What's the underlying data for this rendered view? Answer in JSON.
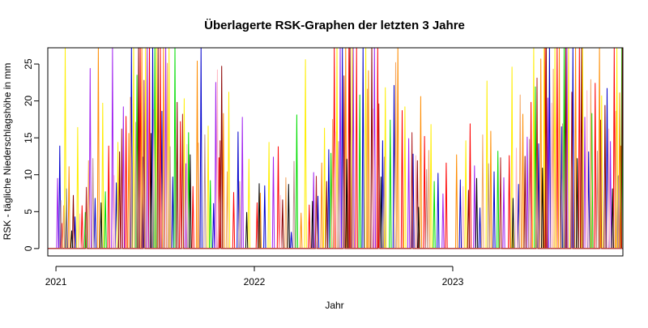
{
  "chart_data": {
    "type": "line",
    "title": "Überlagerte RSK-Graphen der letzten 3 Jahre",
    "xlabel": "Jahr",
    "ylabel": "RSK - tägliche Niederschlagshöhe in mm",
    "xlim": [
      "2020-12-17",
      "2023-11-10"
    ],
    "ylim": [
      -1,
      27.2
    ],
    "x_ticks": [
      {
        "date": "2021-01-01",
        "label": "2021"
      },
      {
        "date": "2022-01-01",
        "label": "2022"
      },
      {
        "date": "2023-01-01",
        "label": "2023"
      }
    ],
    "y_ticks": [
      0,
      5,
      10,
      15,
      20,
      25
    ],
    "grid": false,
    "legend": "none",
    "series_colors": [
      "#0000cc",
      "#ff0000",
      "#ffee00",
      "#00dd00",
      "#a020f0",
      "#ff8c00",
      "#8b0000",
      "#000000",
      "#f4a460",
      "#ffb6c1",
      "#bc8f8f",
      "#b22222"
    ],
    "series": [
      {
        "values": [
          [
            "2021-01-08",
            13.9
          ],
          [
            "2021-01-20",
            8.1
          ],
          [
            "2021-02-05",
            4.3
          ],
          [
            "2021-03-14",
            6.8
          ],
          [
            "2021-04-22",
            8.9
          ],
          [
            "2021-05-20",
            27.2
          ],
          [
            "2021-06-10",
            12.4
          ],
          [
            "2021-06-28",
            27.2
          ],
          [
            "2021-07-15",
            18.6
          ],
          [
            "2021-08-04",
            9.7
          ],
          [
            "2021-09-25",
            27.2
          ],
          [
            "2021-10-18",
            6.1
          ],
          [
            "2021-12-02",
            15.8
          ],
          [
            "2022-01-20",
            8.5
          ],
          [
            "2022-03-10",
            2.2
          ],
          [
            "2022-04-28",
            7.1
          ],
          [
            "2022-05-18",
            13.4
          ],
          [
            "2022-06-12",
            27.2
          ],
          [
            "2022-07-20",
            27.2
          ],
          [
            "2022-08-25",
            14.6
          ],
          [
            "2022-09-15",
            22.1
          ],
          [
            "2022-10-20",
            12.8
          ],
          [
            "2022-12-05",
            10.2
          ],
          [
            "2023-01-15",
            9.3
          ],
          [
            "2023-02-20",
            5.5
          ],
          [
            "2023-03-18",
            10.4
          ],
          [
            "2023-05-02",
            8.7
          ],
          [
            "2023-06-08",
            14.2
          ],
          [
            "2023-06-28",
            27.2
          ],
          [
            "2023-07-20",
            16.5
          ],
          [
            "2023-08-10",
            27.2
          ],
          [
            "2023-09-08",
            13.1
          ],
          [
            "2023-10-12",
            21.7
          ],
          [
            "2023-11-01",
            9.8
          ]
        ]
      },
      {
        "values": [
          [
            "2021-01-12",
            3.4
          ],
          [
            "2021-02-18",
            5.8
          ],
          [
            "2021-04-08",
            13.9
          ],
          [
            "2021-05-10",
            17.9
          ],
          [
            "2021-06-05",
            27.2
          ],
          [
            "2021-06-22",
            27.2
          ],
          [
            "2021-07-12",
            27.2
          ],
          [
            "2021-08-18",
            17.2
          ],
          [
            "2021-09-10",
            8.4
          ],
          [
            "2021-10-28",
            12.3
          ],
          [
            "2021-11-24",
            7.6
          ],
          [
            "2022-01-06",
            6.2
          ],
          [
            "2022-02-14",
            13.8
          ],
          [
            "2022-04-12",
            5.9
          ],
          [
            "2022-05-28",
            27.2
          ],
          [
            "2022-06-24",
            27.2
          ],
          [
            "2022-07-08",
            27.2
          ],
          [
            "2022-08-16",
            27.2
          ],
          [
            "2022-09-30",
            18.7
          ],
          [
            "2022-11-10",
            15.2
          ],
          [
            "2022-12-20",
            11.6
          ],
          [
            "2023-02-02",
            16.9
          ],
          [
            "2023-04-15",
            12.6
          ],
          [
            "2023-05-25",
            19.8
          ],
          [
            "2023-06-20",
            27.2
          ],
          [
            "2023-07-12",
            27.2
          ],
          [
            "2023-08-22",
            27.2
          ],
          [
            "2023-09-20",
            22.4
          ],
          [
            "2023-10-25",
            27.2
          ],
          [
            "2023-11-06",
            13.9
          ]
        ]
      },
      {
        "values": [
          [
            "2021-01-18",
            27.2
          ],
          [
            "2021-02-10",
            16.4
          ],
          [
            "2021-03-28",
            19.7
          ],
          [
            "2021-04-25",
            14.4
          ],
          [
            "2021-05-24",
            27.2
          ],
          [
            "2021-06-15",
            27.2
          ],
          [
            "2021-07-05",
            27.2
          ],
          [
            "2021-07-28",
            27.2
          ],
          [
            "2021-08-25",
            20.3
          ],
          [
            "2021-10-08",
            16.6
          ],
          [
            "2021-11-15",
            21.2
          ],
          [
            "2021-12-22",
            12.1
          ],
          [
            "2022-01-28",
            14.4
          ],
          [
            "2022-04-05",
            25.6
          ],
          [
            "2022-05-10",
            16.3
          ],
          [
            "2022-06-02",
            27.2
          ],
          [
            "2022-06-30",
            27.2
          ],
          [
            "2022-07-25",
            27.2
          ],
          [
            "2022-08-30",
            21.8
          ],
          [
            "2022-10-05",
            19.2
          ],
          [
            "2022-11-22",
            16.8
          ],
          [
            "2023-01-25",
            14.6
          ],
          [
            "2023-03-05",
            22.7
          ],
          [
            "2023-04-20",
            24.6
          ],
          [
            "2023-05-30",
            27.2
          ],
          [
            "2023-06-18",
            27.2
          ],
          [
            "2023-07-08",
            27.2
          ],
          [
            "2023-08-02",
            27.2
          ],
          [
            "2023-08-28",
            27.2
          ],
          [
            "2023-10-02",
            20.7
          ],
          [
            "2023-10-30",
            27.2
          ]
        ]
      },
      {
        "values": [
          [
            "2021-02-24",
            4.9
          ],
          [
            "2021-04-02",
            7.7
          ],
          [
            "2021-05-30",
            23.5
          ],
          [
            "2021-07-02",
            27.2
          ],
          [
            "2021-08-08",
            27.2
          ],
          [
            "2021-09-02",
            15.7
          ],
          [
            "2021-10-12",
            9.2
          ],
          [
            "2022-03-20",
            18.1
          ],
          [
            "2022-05-22",
            12.9
          ],
          [
            "2022-07-14",
            20.8
          ],
          [
            "2022-09-08",
            17.4
          ],
          [
            "2022-11-28",
            9.1
          ],
          [
            "2023-03-25",
            13.2
          ],
          [
            "2023-06-02",
            21.9
          ],
          [
            "2023-07-25",
            27.2
          ],
          [
            "2023-09-14",
            18.3
          ],
          [
            "2023-11-08",
            27.2
          ]
        ]
      },
      {
        "values": [
          [
            "2021-01-04",
            9.5
          ],
          [
            "2021-03-05",
            24.4
          ],
          [
            "2021-04-15",
            27.2
          ],
          [
            "2021-05-05",
            19.2
          ],
          [
            "2021-06-18",
            27.2
          ],
          [
            "2021-07-22",
            27.2
          ],
          [
            "2021-08-28",
            11.5
          ],
          [
            "2021-10-22",
            22.5
          ],
          [
            "2021-12-10",
            17.8
          ],
          [
            "2022-02-05",
            12.4
          ],
          [
            "2022-04-20",
            10.3
          ],
          [
            "2022-06-08",
            27.2
          ],
          [
            "2022-07-02",
            27.2
          ],
          [
            "2022-08-10",
            27.2
          ],
          [
            "2022-10-12",
            14.9
          ],
          [
            "2022-12-14",
            7.4
          ],
          [
            "2023-02-10",
            11.2
          ],
          [
            "2023-04-05",
            9.6
          ],
          [
            "2023-05-18",
            15.1
          ],
          [
            "2023-06-25",
            20.4
          ],
          [
            "2023-07-30",
            27.2
          ],
          [
            "2023-09-01",
            17.8
          ],
          [
            "2023-10-18",
            14.5
          ]
        ]
      },
      {
        "values": [
          [
            "2021-01-25",
            11.1
          ],
          [
            "2021-03-20",
            27.2
          ],
          [
            "2021-05-15",
            15.6
          ],
          [
            "2021-06-08",
            27.2
          ],
          [
            "2021-07-18",
            27.2
          ],
          [
            "2021-09-18",
            25.4
          ],
          [
            "2021-11-05",
            18.3
          ],
          [
            "2022-01-12",
            7.5
          ],
          [
            "2022-03-28",
            4.8
          ],
          [
            "2022-05-05",
            11.6
          ],
          [
            "2022-06-18",
            27.2
          ],
          [
            "2022-07-30",
            24.1
          ],
          [
            "2022-09-22",
            27.2
          ],
          [
            "2022-11-03",
            20.6
          ],
          [
            "2023-01-08",
            12.7
          ],
          [
            "2023-03-12",
            15.9
          ],
          [
            "2023-05-10",
            18.2
          ],
          [
            "2023-06-12",
            25.7
          ],
          [
            "2023-07-16",
            27.2
          ],
          [
            "2023-08-15",
            27.2
          ],
          [
            "2023-09-28",
            27.2
          ],
          [
            "2023-11-04",
            21.1
          ]
        ]
      },
      {
        "values": [
          [
            "2021-02-02",
            7.2
          ],
          [
            "2021-04-28",
            13.1
          ],
          [
            "2021-06-02",
            27.2
          ],
          [
            "2021-07-08",
            27.2
          ],
          [
            "2021-08-12",
            19.8
          ],
          [
            "2021-11-02",
            24.7
          ],
          [
            "2022-02-22",
            6.6
          ],
          [
            "2022-05-14",
            9.1
          ],
          [
            "2022-06-26",
            27.2
          ],
          [
            "2022-08-05",
            27.2
          ],
          [
            "2022-10-28",
            11.9
          ],
          [
            "2023-01-30",
            7.9
          ],
          [
            "2023-05-14",
            12.5
          ],
          [
            "2023-06-22",
            27.2
          ],
          [
            "2023-07-28",
            27.2
          ],
          [
            "2023-08-26",
            27.2
          ],
          [
            "2023-10-08",
            19.4
          ],
          [
            "2023-11-09",
            27.2
          ]
        ]
      },
      {
        "values": [
          [
            "2021-01-30",
            2.4
          ],
          [
            "2021-03-25",
            6.2
          ],
          [
            "2021-06-25",
            15.6
          ],
          [
            "2021-09-05",
            12.7
          ],
          [
            "2021-12-18",
            4.9
          ],
          [
            "2022-01-10",
            8.8
          ],
          [
            "2022-03-05",
            8.7
          ],
          [
            "2022-04-18",
            6.4
          ],
          [
            "2022-06-20",
            12.1
          ],
          [
            "2022-08-22",
            9.7
          ],
          [
            "2022-10-30",
            5.6
          ],
          [
            "2023-02-14",
            9.5
          ],
          [
            "2023-04-22",
            6.8
          ],
          [
            "2023-06-15",
            10.9
          ],
          [
            "2023-08-18",
            12.2
          ],
          [
            "2023-10-22",
            8.1
          ]
        ]
      },
      {
        "values": [
          [
            "2021-01-15",
            5.8
          ],
          [
            "2021-03-02",
            11.9
          ],
          [
            "2021-05-18",
            20.5
          ],
          [
            "2021-07-25",
            25.1
          ],
          [
            "2021-09-20",
            14.3
          ],
          [
            "2021-11-12",
            10.4
          ],
          [
            "2022-02-28",
            9.6
          ],
          [
            "2022-05-25",
            17.5
          ],
          [
            "2022-07-28",
            21.6
          ],
          [
            "2022-09-18",
            25.2
          ],
          [
            "2022-11-18",
            13.3
          ],
          [
            "2023-02-25",
            15.4
          ],
          [
            "2023-05-05",
            20.8
          ],
          [
            "2023-07-05",
            24.3
          ],
          [
            "2023-09-12",
            22.9
          ],
          [
            "2023-10-28",
            18.6
          ]
        ]
      },
      {
        "values": [
          [
            "2021-02-14",
            4.7
          ],
          [
            "2021-04-18",
            9.9
          ],
          [
            "2021-06-30",
            18.8
          ],
          [
            "2021-08-30",
            14.1
          ],
          [
            "2021-10-25",
            24.2
          ],
          [
            "2022-02-18",
            7.2
          ],
          [
            "2022-05-30",
            15.8
          ],
          [
            "2022-08-08",
            18.9
          ],
          [
            "2022-10-25",
            12.6
          ],
          [
            "2023-01-20",
            8.4
          ],
          [
            "2023-04-28",
            13.6
          ],
          [
            "2023-07-02",
            19.7
          ],
          [
            "2023-09-05",
            21.4
          ],
          [
            "2023-10-15",
            16.2
          ]
        ]
      },
      {
        "values": [
          [
            "2021-01-10",
            6.5
          ],
          [
            "2021-03-10",
            12.2
          ],
          [
            "2021-05-28",
            17.1
          ],
          [
            "2021-07-30",
            13.8
          ],
          [
            "2021-10-02",
            15.4
          ],
          [
            "2021-12-05",
            9.1
          ],
          [
            "2022-03-15",
            11.8
          ],
          [
            "2022-06-05",
            14.5
          ],
          [
            "2022-08-28",
            12.4
          ],
          [
            "2022-11-14",
            10.7
          ],
          [
            "2023-03-08",
            11.5
          ],
          [
            "2023-05-22",
            14.8
          ],
          [
            "2023-07-22",
            16.9
          ],
          [
            "2023-09-24",
            13.2
          ],
          [
            "2023-11-02",
            9.9
          ]
        ]
      },
      {
        "values": [
          [
            "2021-02-26",
            8.3
          ],
          [
            "2021-05-02",
            16.2
          ],
          [
            "2021-06-12",
            22.8
          ],
          [
            "2021-08-22",
            18.2
          ],
          [
            "2021-10-30",
            14.6
          ],
          [
            "2022-04-25",
            9.8
          ],
          [
            "2022-06-15",
            23.4
          ],
          [
            "2022-08-18",
            19.6
          ],
          [
            "2022-10-18",
            15.7
          ],
          [
            "2023-03-30",
            12.3
          ],
          [
            "2023-06-05",
            23.1
          ],
          [
            "2023-08-08",
            21.2
          ],
          [
            "2023-09-30",
            17.4
          ]
        ]
      }
    ]
  }
}
